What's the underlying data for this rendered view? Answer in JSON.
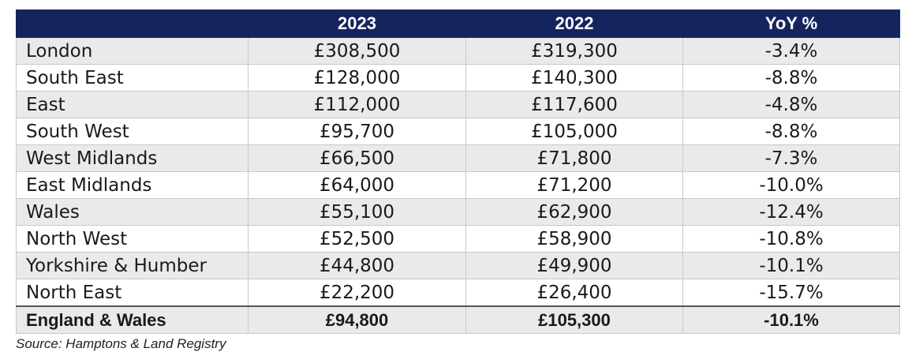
{
  "chart_data": {
    "type": "table",
    "columns": [
      "",
      "2023",
      "2022",
      "YoY %"
    ],
    "rows": [
      {
        "region": "London",
        "v2023": "£308,500",
        "v2022": "£319,300",
        "yoy": "-3.4%"
      },
      {
        "region": "South East",
        "v2023": "£128,000",
        "v2022": "£140,300",
        "yoy": "-8.8%"
      },
      {
        "region": "East",
        "v2023": "£112,000",
        "v2022": "£117,600",
        "yoy": "-4.8%"
      },
      {
        "region": "South West",
        "v2023": "£95,700",
        "v2022": "£105,000",
        "yoy": "-8.8%"
      },
      {
        "region": "West Midlands",
        "v2023": "£66,500",
        "v2022": "£71,800",
        "yoy": "-7.3%"
      },
      {
        "region": "East Midlands",
        "v2023": "£64,000",
        "v2022": "£71,200",
        "yoy": "-10.0%"
      },
      {
        "region": "Wales",
        "v2023": "£55,100",
        "v2022": "£62,900",
        "yoy": "-12.4%"
      },
      {
        "region": "North West",
        "v2023": "£52,500",
        "v2022": "£58,900",
        "yoy": "-10.8%"
      },
      {
        "region": "Yorkshire & Humber",
        "v2023": "£44,800",
        "v2022": "£49,900",
        "yoy": "-10.1%"
      },
      {
        "region": "North East",
        "v2023": "£22,200",
        "v2022": "£26,400",
        "yoy": "-15.7%"
      }
    ],
    "total": {
      "region": "England & Wales",
      "v2023": "£94,800",
      "v2022": "£105,300",
      "yoy": "-10.1%"
    },
    "source": "Source: Hamptons & Land Registry"
  },
  "colors": {
    "header_bg": "#16245e",
    "header_text": "#ffffff",
    "row_shade": "#eaeaea",
    "row_plain": "#ffffff"
  }
}
